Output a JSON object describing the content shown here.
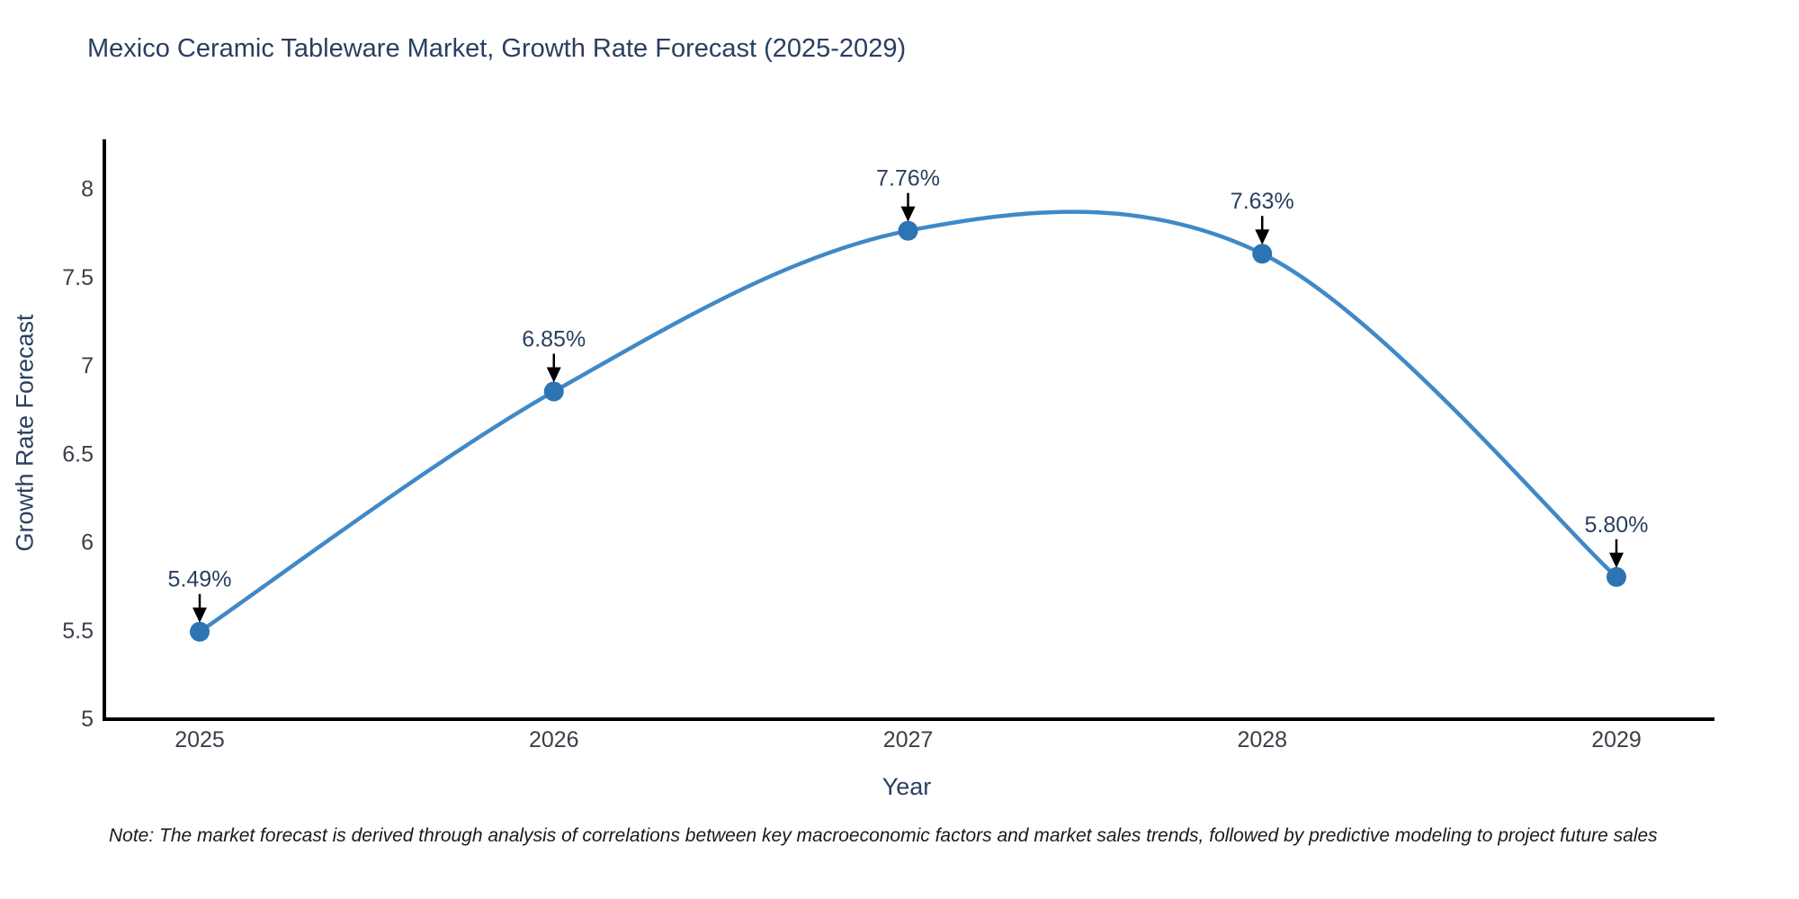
{
  "chart_data": {
    "type": "line",
    "title": "Mexico Ceramic Tableware Market, Growth Rate Forecast (2025-2029)",
    "xlabel": "Year",
    "ylabel": "Growth Rate Forecast",
    "x": [
      "2025",
      "2026",
      "2027",
      "2028",
      "2029"
    ],
    "y": [
      5.49,
      6.85,
      7.76,
      7.63,
      5.8
    ],
    "point_labels": [
      "5.49%",
      "6.85%",
      "7.76%",
      "7.63%",
      "5.80%"
    ],
    "yticks": [
      5,
      5.5,
      6,
      6.5,
      7,
      7.5,
      8
    ],
    "ytick_labels": [
      "5",
      "5.5",
      "6",
      "6.5",
      "7",
      "7.5",
      "8"
    ],
    "ylim": [
      5,
      8.28
    ],
    "curve": "spline",
    "grid": false,
    "legend": "none",
    "line_color": "#4089c8",
    "marker_color": "#2d74b3",
    "axis_color": "#000000",
    "tick_color": "#3a4048",
    "annotation_color": "#2a3f5f",
    "arrow_color": "#000000",
    "note": "Note: The market forecast is derived through analysis of correlations between key macroeconomic factors and market sales trends, followed by predictive modeling to project future sales"
  }
}
